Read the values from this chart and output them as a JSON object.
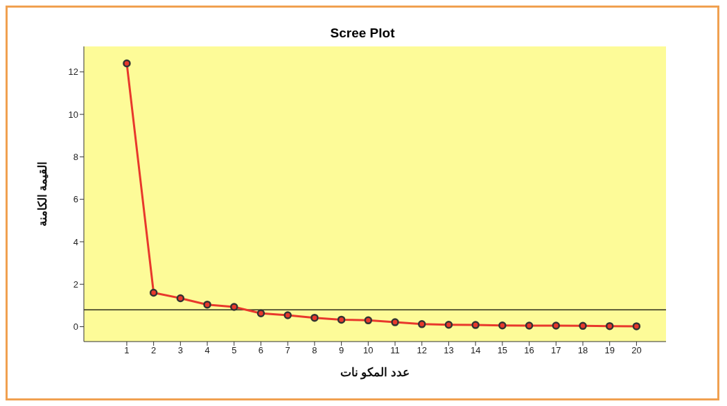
{
  "chart_data": {
    "type": "line",
    "title": "Scree Plot",
    "xlabel": "عدد المكو نات",
    "ylabel": "القيمة الكامنة",
    "x": [
      1,
      2,
      3,
      4,
      5,
      6,
      7,
      8,
      9,
      10,
      11,
      12,
      13,
      14,
      15,
      16,
      17,
      18,
      19,
      20
    ],
    "series": [
      {
        "color": "#e8382c",
        "values": [
          12.4,
          1.6,
          1.34,
          1.04,
          0.93,
          0.63,
          0.54,
          0.42,
          0.33,
          0.3,
          0.21,
          0.12,
          0.09,
          0.08,
          0.06,
          0.05,
          0.05,
          0.04,
          0.03,
          0.02
        ]
      }
    ],
    "xlim": [
      -0.6,
      21.1
    ],
    "xticks": [
      1,
      2,
      3,
      4,
      5,
      6,
      7,
      8,
      9,
      10,
      11,
      12,
      13,
      14,
      15,
      16,
      17,
      18,
      19,
      20
    ],
    "ylim": [
      -0.7,
      13.2
    ],
    "yticks": [
      0,
      2,
      4,
      6,
      8,
      10,
      12
    ],
    "ref_lines": [
      {
        "axis": "y",
        "value": 0.8,
        "color": "#000000"
      }
    ],
    "grid": false,
    "marker": "circle",
    "line_style": "solid"
  }
}
